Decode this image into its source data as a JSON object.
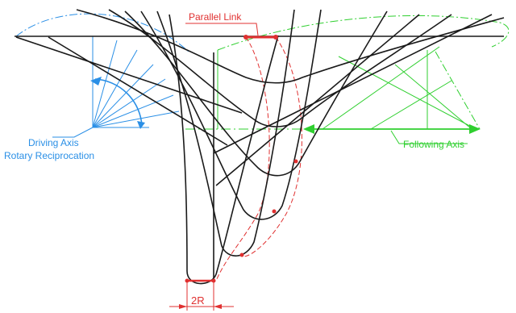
{
  "labels": {
    "parallel_link": "Parallel Link",
    "driving_axis": "Driving Axis",
    "driving_axis_sub": "Rotary Reciprocation",
    "following_axis": "Following Axis",
    "dimension": "2R"
  },
  "colors": {
    "mechanism": "#1a1a1a",
    "driving": "#2a8fe6",
    "following": "#2fcf2f",
    "link": "#e03030"
  }
}
